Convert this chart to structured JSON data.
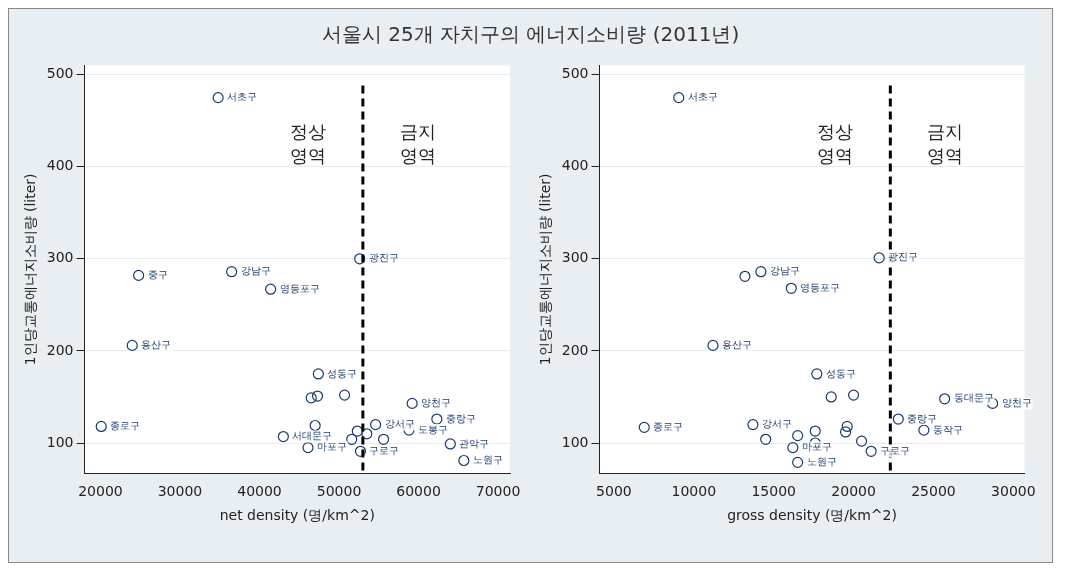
{
  "chart_data": [
    {
      "type": "scatter",
      "title": "서울시 25개 자치구의 에너지소비량 (2011년)",
      "xlabel": "net density (명/km^2)",
      "ylabel": "1인당교통에너지소비량 (liter)",
      "xlim": [
        18000,
        71500
      ],
      "xticks": [
        20000,
        30000,
        40000,
        50000,
        60000,
        70000
      ],
      "ylim": [
        67,
        510
      ],
      "yticks": [
        100,
        200,
        300,
        400,
        500
      ],
      "grid": "y",
      "marker": "circle",
      "series": [
        {
          "color": "#1a3a6b",
          "x": [
            34800,
            24800,
            36500,
            41400,
            52600,
            24000,
            47400,
            46500,
            47300,
            50700,
            59200,
            62300,
            20100,
            47000,
            54600,
            43000,
            52300,
            58800,
            51600,
            64000,
            46100,
            52700,
            65700,
            53500,
            55600
          ],
          "values": [
            475,
            282,
            286,
            267,
            300,
            206,
            175,
            149,
            151,
            152,
            143,
            126,
            118,
            119,
            120,
            107,
            113,
            114,
            104,
            99,
            95,
            91,
            81,
            110,
            104
          ]
        }
      ],
      "ref_lines": [
        {
          "axis": "x",
          "value": 53000,
          "color": "#000000",
          "line_style": "dashed"
        }
      ],
      "annotations": [
        "정상\n영역",
        "금지\n영역",
        {
          "text": "서초구",
          "x": 34800,
          "y": 475
        },
        {
          "text": "중구",
          "x": 24800,
          "y": 282
        },
        {
          "text": "강남구",
          "x": 36500,
          "y": 286
        },
        {
          "text": "영등포구",
          "x": 41400,
          "y": 267
        },
        {
          "text": "광진구",
          "x": 52600,
          "y": 300
        },
        {
          "text": "용산구",
          "x": 24000,
          "y": 206
        },
        {
          "text": "성동구",
          "x": 47400,
          "y": 175
        },
        {
          "text": "양천구",
          "x": 59200,
          "y": 143
        },
        {
          "text": "중랑구",
          "x": 62300,
          "y": 126
        },
        {
          "text": "종로구",
          "x": 20100,
          "y": 118
        },
        {
          "text": "강서구",
          "x": 54600,
          "y": 120
        },
        {
          "text": "서대문구",
          "x": 43000,
          "y": 107
        },
        {
          "text": "도봉구",
          "x": 58800,
          "y": 114
        },
        {
          "text": "관악구",
          "x": 64000,
          "y": 99
        },
        {
          "text": "마포구",
          "x": 46100,
          "y": 95
        },
        {
          "text": "구로구",
          "x": 52700,
          "y": 91
        },
        {
          "text": "노원구",
          "x": 65700,
          "y": 81
        }
      ]
    },
    {
      "type": "scatter",
      "xlabel": "gross density (명/km^2)",
      "ylabel": "1인당교통에너지소비량 (liter)",
      "xlim": [
        4100,
        30700
      ],
      "xticks": [
        5000,
        10000,
        15000,
        20000,
        25000,
        30000
      ],
      "ylim": [
        67,
        510
      ],
      "yticks": [
        100,
        200,
        300,
        400,
        500
      ],
      "grid": "y",
      "marker": "circle",
      "series": [
        {
          "color": "#1a3a6b",
          "x": [
            9060,
            13200,
            14200,
            16100,
            21600,
            11200,
            17700,
            18600,
            20000,
            25700,
            28700,
            22800,
            6900,
            13700,
            19600,
            24400,
            17600,
            16500,
            19500,
            14500,
            17600,
            16200,
            21100,
            16500,
            20500
          ],
          "values": [
            475,
            281,
            286,
            268,
            301,
            206,
            175,
            150,
            152,
            148,
            143,
            126,
            117,
            120,
            118,
            114,
            113,
            108,
            112,
            104,
            100,
            95,
            91,
            79,
            102
          ]
        }
      ],
      "ref_lines": [
        {
          "axis": "x",
          "value": 22300,
          "color": "#000000",
          "line_style": "dashed"
        }
      ],
      "annotations": [
        "정상\n영역",
        "금지\n영역",
        {
          "text": "서초구",
          "x": 9060,
          "y": 475
        },
        {
          "text": "강남구",
          "x": 14200,
          "y": 286
        },
        {
          "text": "영등포구",
          "x": 16100,
          "y": 268
        },
        {
          "text": "광진구",
          "x": 21600,
          "y": 301
        },
        {
          "text": "용산구",
          "x": 11200,
          "y": 206
        },
        {
          "text": "성동구",
          "x": 17700,
          "y": 175
        },
        {
          "text": "동대문구",
          "x": 25700,
          "y": 148
        },
        {
          "text": "양천구",
          "x": 28700,
          "y": 143
        },
        {
          "text": "중랑구",
          "x": 22800,
          "y": 126
        },
        {
          "text": "종로구",
          "x": 6900,
          "y": 117
        },
        {
          "text": "강서구",
          "x": 13700,
          "y": 120
        },
        {
          "text": "동작구",
          "x": 24400,
          "y": 114
        },
        {
          "text": "마포구",
          "x": 16200,
          "y": 95
        },
        {
          "text": "구로구",
          "x": 21100,
          "y": 91
        },
        {
          "text": "노원구",
          "x": 16500,
          "y": 79
        }
      ]
    }
  ]
}
